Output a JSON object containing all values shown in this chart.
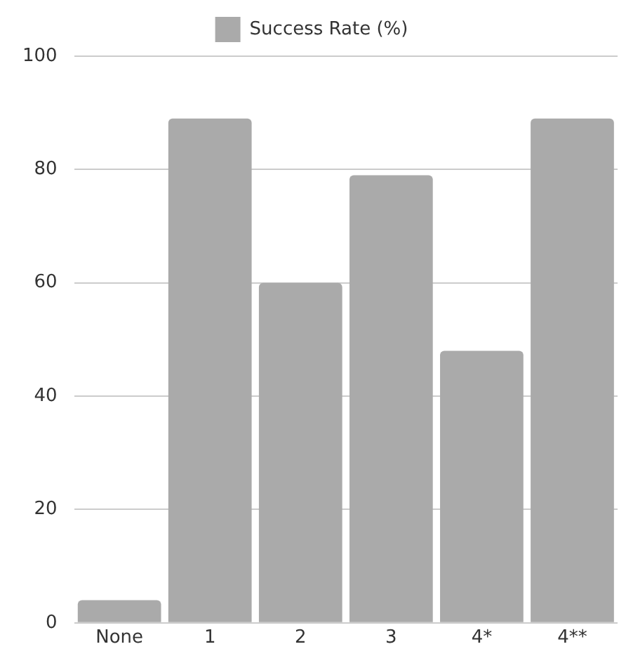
{
  "chart_data": {
    "type": "bar",
    "categories": [
      "None",
      "1",
      "2",
      "3",
      "4*",
      "4**"
    ],
    "series": [
      {
        "name": "Success Rate (%)",
        "color": "#aaaaaa",
        "values": [
          4,
          89,
          60,
          79,
          48,
          89
        ]
      }
    ],
    "ylim": [
      0,
      100
    ],
    "yticks": [
      0,
      20,
      40,
      60,
      80,
      100
    ],
    "grid": "y",
    "legend": "top"
  }
}
